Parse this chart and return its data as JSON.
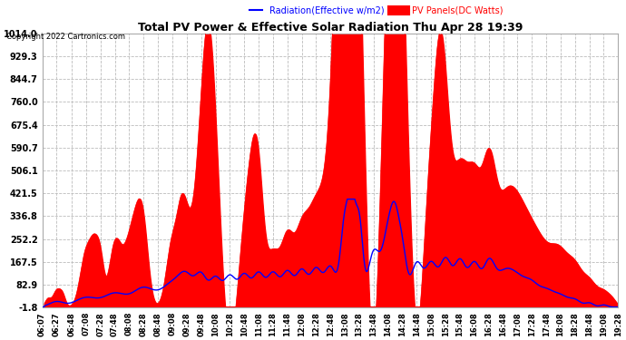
{
  "title": "Total PV Power & Effective Solar Radiation Thu Apr 28 19:39",
  "copyright": "Copyright 2022 Cartronics.com",
  "legend_radiation": "Radiation(Effective w/m2)",
  "legend_pv": "PV Panels(DC Watts)",
  "ylim": [
    -1.8,
    1014.0
  ],
  "yticks": [
    -1.8,
    82.9,
    167.5,
    252.2,
    336.8,
    421.5,
    506.1,
    590.7,
    675.4,
    760.0,
    844.7,
    929.3,
    1014.0
  ],
  "bg_color": "#ffffff",
  "plot_bg_color": "#ffffff",
  "grid_color": "#bbbbbb",
  "fill_color": "#ff0000",
  "line_color_radiation": "#0000ff",
  "line_color_pv": "#ff0000",
  "title_color": "#000000",
  "fig_bg_color": "#ffffff",
  "xtick_labels": [
    "06:07",
    "06:27",
    "06:48",
    "07:08",
    "07:28",
    "07:48",
    "08:08",
    "08:28",
    "08:48",
    "09:08",
    "09:28",
    "09:48",
    "10:08",
    "10:28",
    "10:48",
    "11:08",
    "11:28",
    "11:48",
    "12:08",
    "12:28",
    "12:48",
    "13:08",
    "13:28",
    "13:48",
    "14:08",
    "14:28",
    "14:48",
    "15:08",
    "15:28",
    "15:48",
    "16:08",
    "16:28",
    "16:48",
    "17:08",
    "17:28",
    "17:48",
    "18:08",
    "18:28",
    "18:48",
    "19:08",
    "19:28"
  ]
}
